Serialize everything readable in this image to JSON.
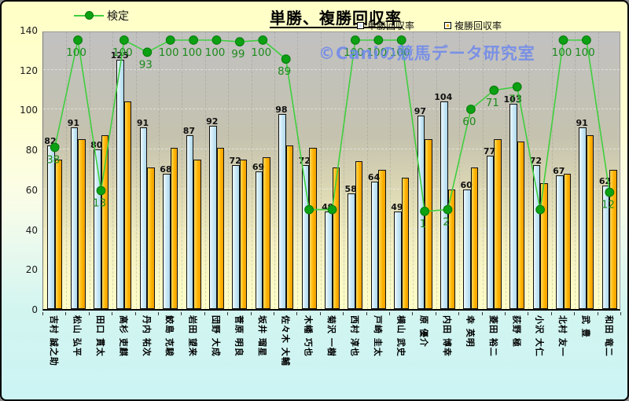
{
  "title": "単勝、複勝回収率",
  "watermark": "©Caniの競馬データ研究室",
  "legend_top": {
    "label": "検定"
  },
  "legend": [
    {
      "label": "単勝回収率",
      "color": "#cdeaf8"
    },
    {
      "label": "複勝回収率",
      "color": "#ffb400"
    }
  ],
  "colors": {
    "win_bar": "#cdeaf8",
    "place_bar": "#ffb400",
    "line": "#3fcf3f",
    "marker": "#0ca012",
    "line_label": "#1d8a1d",
    "bar_label": "#111111"
  },
  "chart_data": {
    "type": "bar",
    "title": "単勝、複勝回収率",
    "categories": [
      "吉村 誠之助",
      "松山 弘平",
      "田口 貫太",
      "高杉 吏麒",
      "丹内 祐次",
      "鮫島 克駿",
      "岩田 望来",
      "団野 大成",
      "菅原 明良",
      "坂井 瑠星",
      "佐々木 大輔",
      "木幡 巧也",
      "菊沢 一樹",
      "西村 淳也",
      "戸崎 圭太",
      "横山 武史",
      "原 優介",
      "内田 博幸",
      "幸 英明",
      "菱田 裕二",
      "荻野 極",
      "小沢 大仁",
      "北村 友一",
      "武 豊",
      "和田 竜二"
    ],
    "series": [
      {
        "name": "単勝回収率",
        "type": "bar",
        "values": [
          82,
          91,
          80,
          125,
          91,
          68,
          87,
          92,
          72,
          69,
          98,
          72,
          49,
          58,
          64,
          49,
          97,
          104,
          60,
          77,
          103,
          72,
          67,
          91,
          62
        ],
        "labels_visible": true
      },
      {
        "name": "複勝回収率",
        "type": "bar",
        "values": [
          75,
          85,
          87,
          104,
          71,
          81,
          75,
          81,
          75,
          76,
          82,
          81,
          71,
          74,
          70,
          66,
          85,
          60,
          71,
          85,
          84,
          63,
          68,
          87,
          70
        ],
        "labels_visible": false
      },
      {
        "name": "検定",
        "type": "line",
        "values": [
          38,
          100,
          13,
          100,
          93,
          100,
          100,
          100,
          99,
          100,
          89,
          2,
          2,
          100,
          100,
          100,
          1,
          2,
          60,
          71,
          73,
          2,
          100,
          100,
          12
        ],
        "labels": [
          "38",
          "100",
          "13",
          "100",
          "93",
          "100",
          "100",
          "100",
          "99",
          "100",
          "89",
          "",
          "",
          "100",
          "100",
          "100",
          "1",
          "2",
          "60",
          "71",
          "73",
          "",
          "100",
          "100",
          "12"
        ]
      }
    ],
    "ylabel": "",
    "xlabel": "",
    "ylim": [
      0,
      140
    ],
    "yticks": [
      0,
      20,
      40,
      60,
      80,
      100,
      120,
      140
    ],
    "grid": "horizontal dashed + vertical category separators",
    "legend_position": "top",
    "note_secondary_axis": "検定 line is plotted on a hidden secondary scale: value 100 ≈ primary 137, value 0 ≈ primary 49"
  }
}
